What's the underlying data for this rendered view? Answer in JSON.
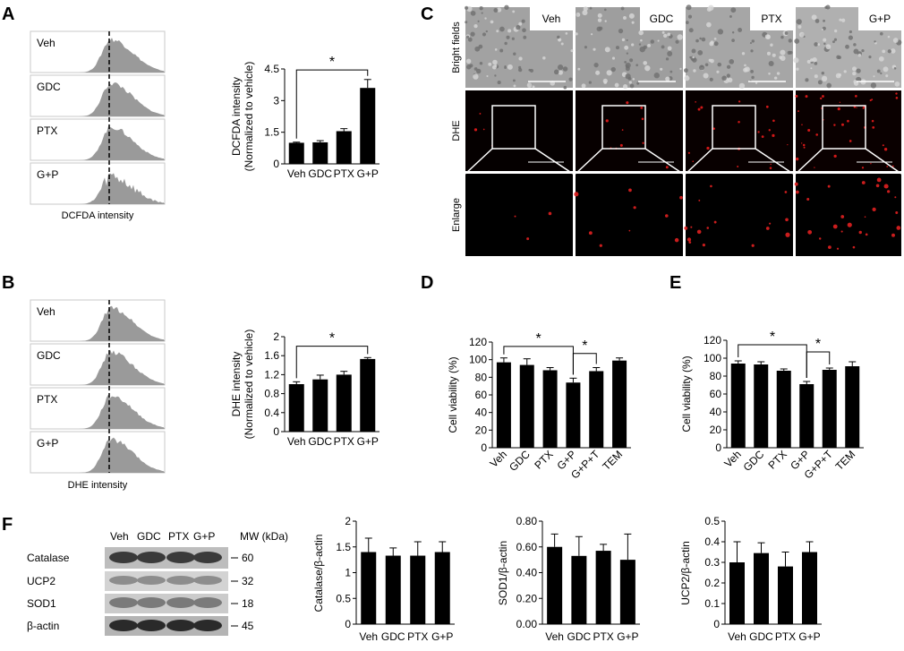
{
  "panels": {
    "A": "A",
    "B": "B",
    "C": "C",
    "D": "D",
    "E": "E",
    "F": "F"
  },
  "flow_A": {
    "labels": [
      "Veh",
      "GDC",
      "PTX",
      "G+P"
    ],
    "xlabel": "DCFDA intensity"
  },
  "flow_B": {
    "labels": [
      "Veh",
      "GDC",
      "PTX",
      "G+P"
    ],
    "xlabel": "DHE intensity"
  },
  "micro": {
    "columns": [
      "Veh",
      "GDC",
      "PTX",
      "G+P"
    ],
    "rows": [
      "Bright fields",
      "DHE",
      "Enlarge"
    ]
  },
  "western": {
    "lanes": [
      "Veh",
      "GDC",
      "PTX",
      "G+P"
    ],
    "mw_header": "MW (kDa)",
    "proteins": [
      {
        "name": "Catalase",
        "mw": "60"
      },
      {
        "name": "UCP2",
        "mw": "32"
      },
      {
        "name": "SOD1",
        "mw": "18"
      },
      {
        "name": "β-actin",
        "mw": "45"
      }
    ]
  },
  "chart_data": [
    {
      "id": "A",
      "type": "bar",
      "categories": [
        "Veh",
        "GDC",
        "PTX",
        "G+P"
      ],
      "values": [
        1.0,
        1.02,
        1.55,
        3.6
      ],
      "errors": [
        0.03,
        0.08,
        0.12,
        0.4
      ],
      "ylabel": "DCFDA intensity",
      "ylabel2": "(Normalized to vehicle)",
      "ylim": [
        0,
        4.5
      ],
      "yticks": [
        "0",
        "1.5",
        "3",
        "4.5"
      ],
      "significance": [
        {
          "from": 0,
          "to": 3,
          "mark": "*"
        }
      ]
    },
    {
      "id": "B",
      "type": "bar",
      "categories": [
        "Veh",
        "GDC",
        "PTX",
        "G+P"
      ],
      "values": [
        1.0,
        1.1,
        1.2,
        1.53
      ],
      "errors": [
        0.05,
        0.09,
        0.07,
        0.03
      ],
      "ylabel": "DHE intensity",
      "ylabel2": "(Normalized to vehicle)",
      "ylim": [
        0,
        2
      ],
      "yticks": [
        "0",
        "0.4",
        "0.8",
        "1.2",
        "1.6",
        "2"
      ],
      "significance": [
        {
          "from": 0,
          "to": 3,
          "mark": "*"
        }
      ]
    },
    {
      "id": "D",
      "type": "bar",
      "categories": [
        "Veh",
        "GDC",
        "PTX",
        "G+P",
        "G+P+T",
        "TEM"
      ],
      "values": [
        97,
        94,
        88,
        74,
        87,
        99
      ],
      "errors": [
        5,
        7,
        3,
        5,
        4,
        3
      ],
      "ylabel": "Cell viability (%)",
      "ylim": [
        0,
        120
      ],
      "yticks": [
        "0",
        "20",
        "40",
        "60",
        "80",
        "100",
        "120"
      ],
      "significance": [
        {
          "from": 0,
          "to": 3,
          "mark": "*"
        },
        {
          "from": 3,
          "to": 4,
          "mark": "*"
        }
      ]
    },
    {
      "id": "E",
      "type": "bar",
      "categories": [
        "Veh",
        "GDC",
        "PTX",
        "G+P",
        "G+P+T",
        "TEM"
      ],
      "values": [
        94,
        93,
        86,
        71,
        87,
        91
      ],
      "errors": [
        3,
        3,
        2,
        3,
        2,
        5
      ],
      "ylabel": "Cell viability (%)",
      "ylim": [
        0,
        120
      ],
      "yticks": [
        "0",
        "20",
        "40",
        "60",
        "80",
        "100",
        "120"
      ],
      "significance": [
        {
          "from": 0,
          "to": 3,
          "mark": "*"
        },
        {
          "from": 3,
          "to": 4,
          "mark": "*"
        }
      ]
    },
    {
      "id": "F1",
      "type": "bar",
      "categories": [
        "Veh",
        "GDC",
        "PTX",
        "G+P"
      ],
      "values": [
        1.4,
        1.33,
        1.33,
        1.4
      ],
      "errors": [
        0.27,
        0.15,
        0.27,
        0.2
      ],
      "ylabel": "Catalase/β-actin",
      "ylim": [
        0,
        2
      ],
      "yticks": [
        "0",
        "0.5",
        "1",
        "1.5",
        "2"
      ],
      "significance": []
    },
    {
      "id": "F2",
      "type": "bar",
      "categories": [
        "Veh",
        "GDC",
        "PTX",
        "G+P"
      ],
      "values": [
        0.6,
        0.53,
        0.57,
        0.5
      ],
      "errors": [
        0.1,
        0.15,
        0.05,
        0.2
      ],
      "ylabel": "SOD1/β-actin",
      "ylim": [
        0,
        0.8
      ],
      "yticks": [
        "0.00",
        "0.20",
        "0.40",
        "0.60",
        "0.80"
      ],
      "significance": []
    },
    {
      "id": "F3",
      "type": "bar",
      "categories": [
        "Veh",
        "GDC",
        "PTX",
        "G+P"
      ],
      "values": [
        0.3,
        0.345,
        0.28,
        0.35
      ],
      "errors": [
        0.1,
        0.05,
        0.07,
        0.05
      ],
      "ylabel": "UCP2/β-actin",
      "ylim": [
        0,
        0.5
      ],
      "yticks": [
        "0",
        "0.1",
        "0.2",
        "0.3",
        "0.4",
        "0.5"
      ],
      "significance": []
    }
  ]
}
